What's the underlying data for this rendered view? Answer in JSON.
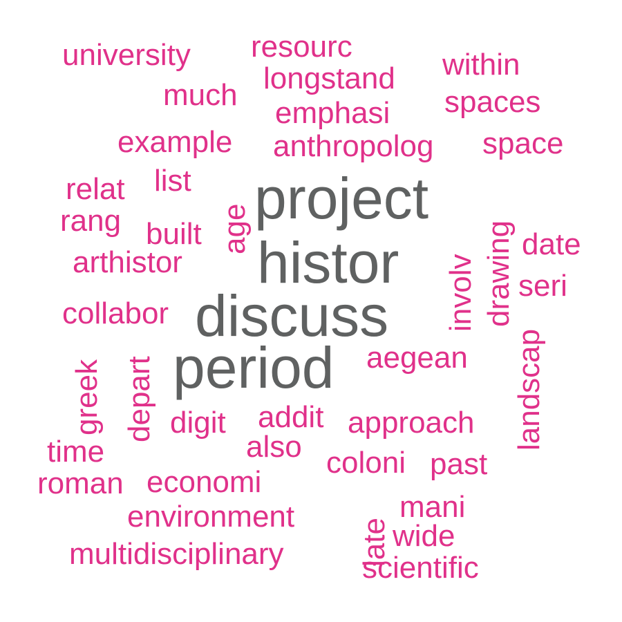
{
  "colors": {
    "big": "#5f6161",
    "small": "#e0318a"
  },
  "words": {
    "project": "project",
    "histor": "histor",
    "discuss": "discuss",
    "period": "period",
    "university": "university",
    "resourc": "resourc",
    "within": "within",
    "longstand": "longstand",
    "much": "much",
    "spaces": "spaces",
    "emphasi": "emphasi",
    "example": "example",
    "anthropolog": "anthropolog",
    "space": "space",
    "relat": "relat",
    "list": "list",
    "rang": "rang",
    "built": "built",
    "age": "age",
    "drawing": "drawing",
    "date": "date",
    "arthistor": "arthistor",
    "involv": "involv",
    "seri": "seri",
    "collabor": "collabor",
    "aegean": "aegean",
    "greek": "greek",
    "depart": "depart",
    "landscap": "landscap",
    "digit": "digit",
    "addit": "addit",
    "approach": "approach",
    "time": "time",
    "also": "also",
    "coloni": "coloni",
    "past": "past",
    "roman": "roman",
    "economi": "economi",
    "environment": "environment",
    "late": "late",
    "mani": "mani",
    "wide": "wide",
    "multidisciplinary": "multidisciplinary",
    "scientific": "scientific"
  }
}
